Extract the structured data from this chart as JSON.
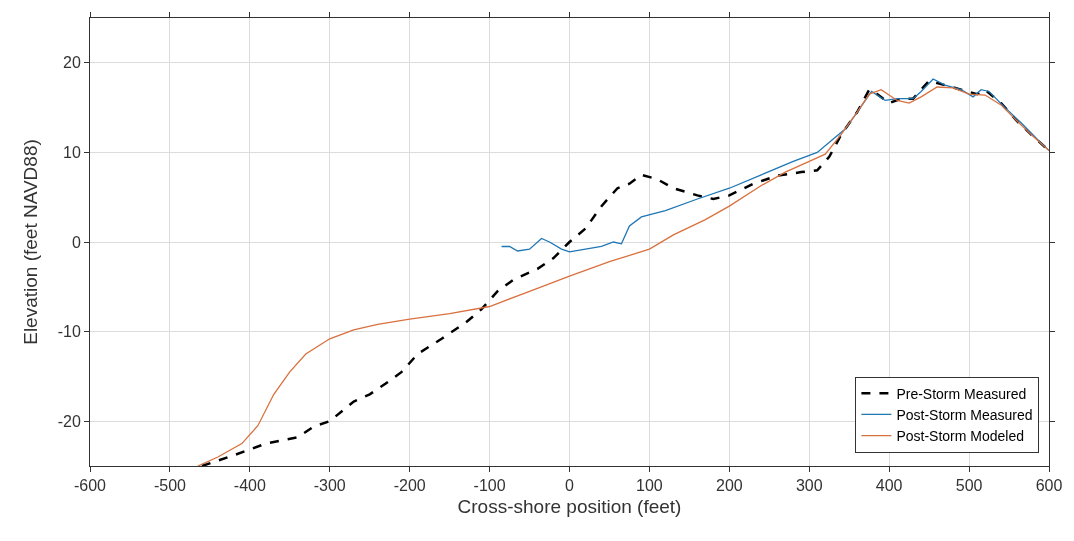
{
  "chart_data": {
    "type": "line",
    "xlabel": "Cross-shore position (feet)",
    "ylabel": "Elevation (feet NAVD88)",
    "xlim": [
      -600,
      600
    ],
    "xticks": [
      -600,
      -500,
      -400,
      -300,
      -200,
      -100,
      0,
      100,
      200,
      300,
      400,
      500,
      600
    ],
    "ylim": [
      -25,
      25
    ],
    "yticks": [
      -20,
      -10,
      0,
      10,
      20
    ],
    "grid": true,
    "legend": "bottom right",
    "marker": "none",
    "series": [
      {
        "name": "Pre-Storm Measured",
        "color": "#000000",
        "line_style": "dashed",
        "x": [
          -460,
          -420,
          -380,
          -340,
          -320,
          -300,
          -270,
          -250,
          -230,
          -210,
          -190,
          -160,
          -130,
          -110,
          -90,
          -70,
          -40,
          -20,
          0,
          20,
          40,
          60,
          75,
          90,
          110,
          130,
          160,
          180,
          200,
          230,
          260,
          290,
          310,
          325,
          340,
          360,
          375,
          385,
          400,
          415,
          430,
          450,
          470,
          490,
          510,
          520,
          540,
          560,
          580,
          600
        ],
        "values": [
          -25,
          -23.8,
          -22.5,
          -21.8,
          -20.6,
          -20,
          -17.8,
          -17,
          -15.8,
          -14.5,
          -12.5,
          -10.8,
          -9,
          -7.5,
          -5.5,
          -4.2,
          -3,
          -1.8,
          0,
          1.5,
          4,
          6,
          6.5,
          7.5,
          7,
          6,
          5.2,
          4.8,
          5.2,
          6.5,
          7.4,
          7.8,
          8,
          9.5,
          12,
          14.5,
          17,
          16.5,
          15.5,
          16,
          16,
          18,
          17.5,
          17,
          16.5,
          17,
          15.5,
          13.5,
          11.8,
          10.2
        ]
      },
      {
        "name": "Post-Storm Measured",
        "color": "#1f77b4",
        "line_style": "solid",
        "x": [
          -85,
          -75,
          -65,
          -50,
          -35,
          -25,
          -10,
          0,
          20,
          40,
          55,
          65,
          75,
          90,
          120,
          160,
          200,
          240,
          280,
          310,
          330,
          345,
          360,
          378,
          395,
          410,
          430,
          440,
          455,
          470,
          490,
          505,
          515,
          525,
          545,
          565,
          585,
          600
        ],
        "values": [
          -0.5,
          -0.5,
          -1,
          -0.8,
          0.4,
          0,
          -0.8,
          -1.1,
          -0.8,
          -0.5,
          0,
          -0.2,
          1.8,
          2.8,
          3.5,
          4.8,
          6,
          7.5,
          9,
          10,
          11.5,
          12.6,
          14.5,
          16.8,
          15.8,
          16,
          16,
          16.8,
          18.2,
          17.5,
          17,
          16.2,
          17,
          16.8,
          15,
          13.3,
          11.5,
          10.2
        ]
      },
      {
        "name": "Post-Storm Modeled",
        "color": "#d9703f",
        "line_style": "solid",
        "x": [
          -465,
          -440,
          -410,
          -390,
          -370,
          -350,
          -330,
          -300,
          -270,
          -240,
          -200,
          -150,
          -100,
          -50,
          0,
          50,
          100,
          130,
          170,
          200,
          240,
          270,
          300,
          320,
          340,
          360,
          375,
          390,
          410,
          425,
          440,
          460,
          480,
          500,
          520,
          540,
          560,
          580,
          600
        ],
        "values": [
          -25,
          -24,
          -22.5,
          -20.5,
          -17,
          -14.5,
          -12.5,
          -10.8,
          -9.8,
          -9.2,
          -8.6,
          -8,
          -7.2,
          -5.5,
          -3.8,
          -2.2,
          -0.8,
          0.8,
          2.5,
          4,
          6.3,
          7.8,
          9,
          9.8,
          12,
          14.5,
          16.5,
          17,
          15.8,
          15.5,
          16.2,
          17.3,
          17.2,
          16.5,
          16.4,
          15.3,
          13.5,
          11.8,
          10.2
        ]
      }
    ]
  }
}
